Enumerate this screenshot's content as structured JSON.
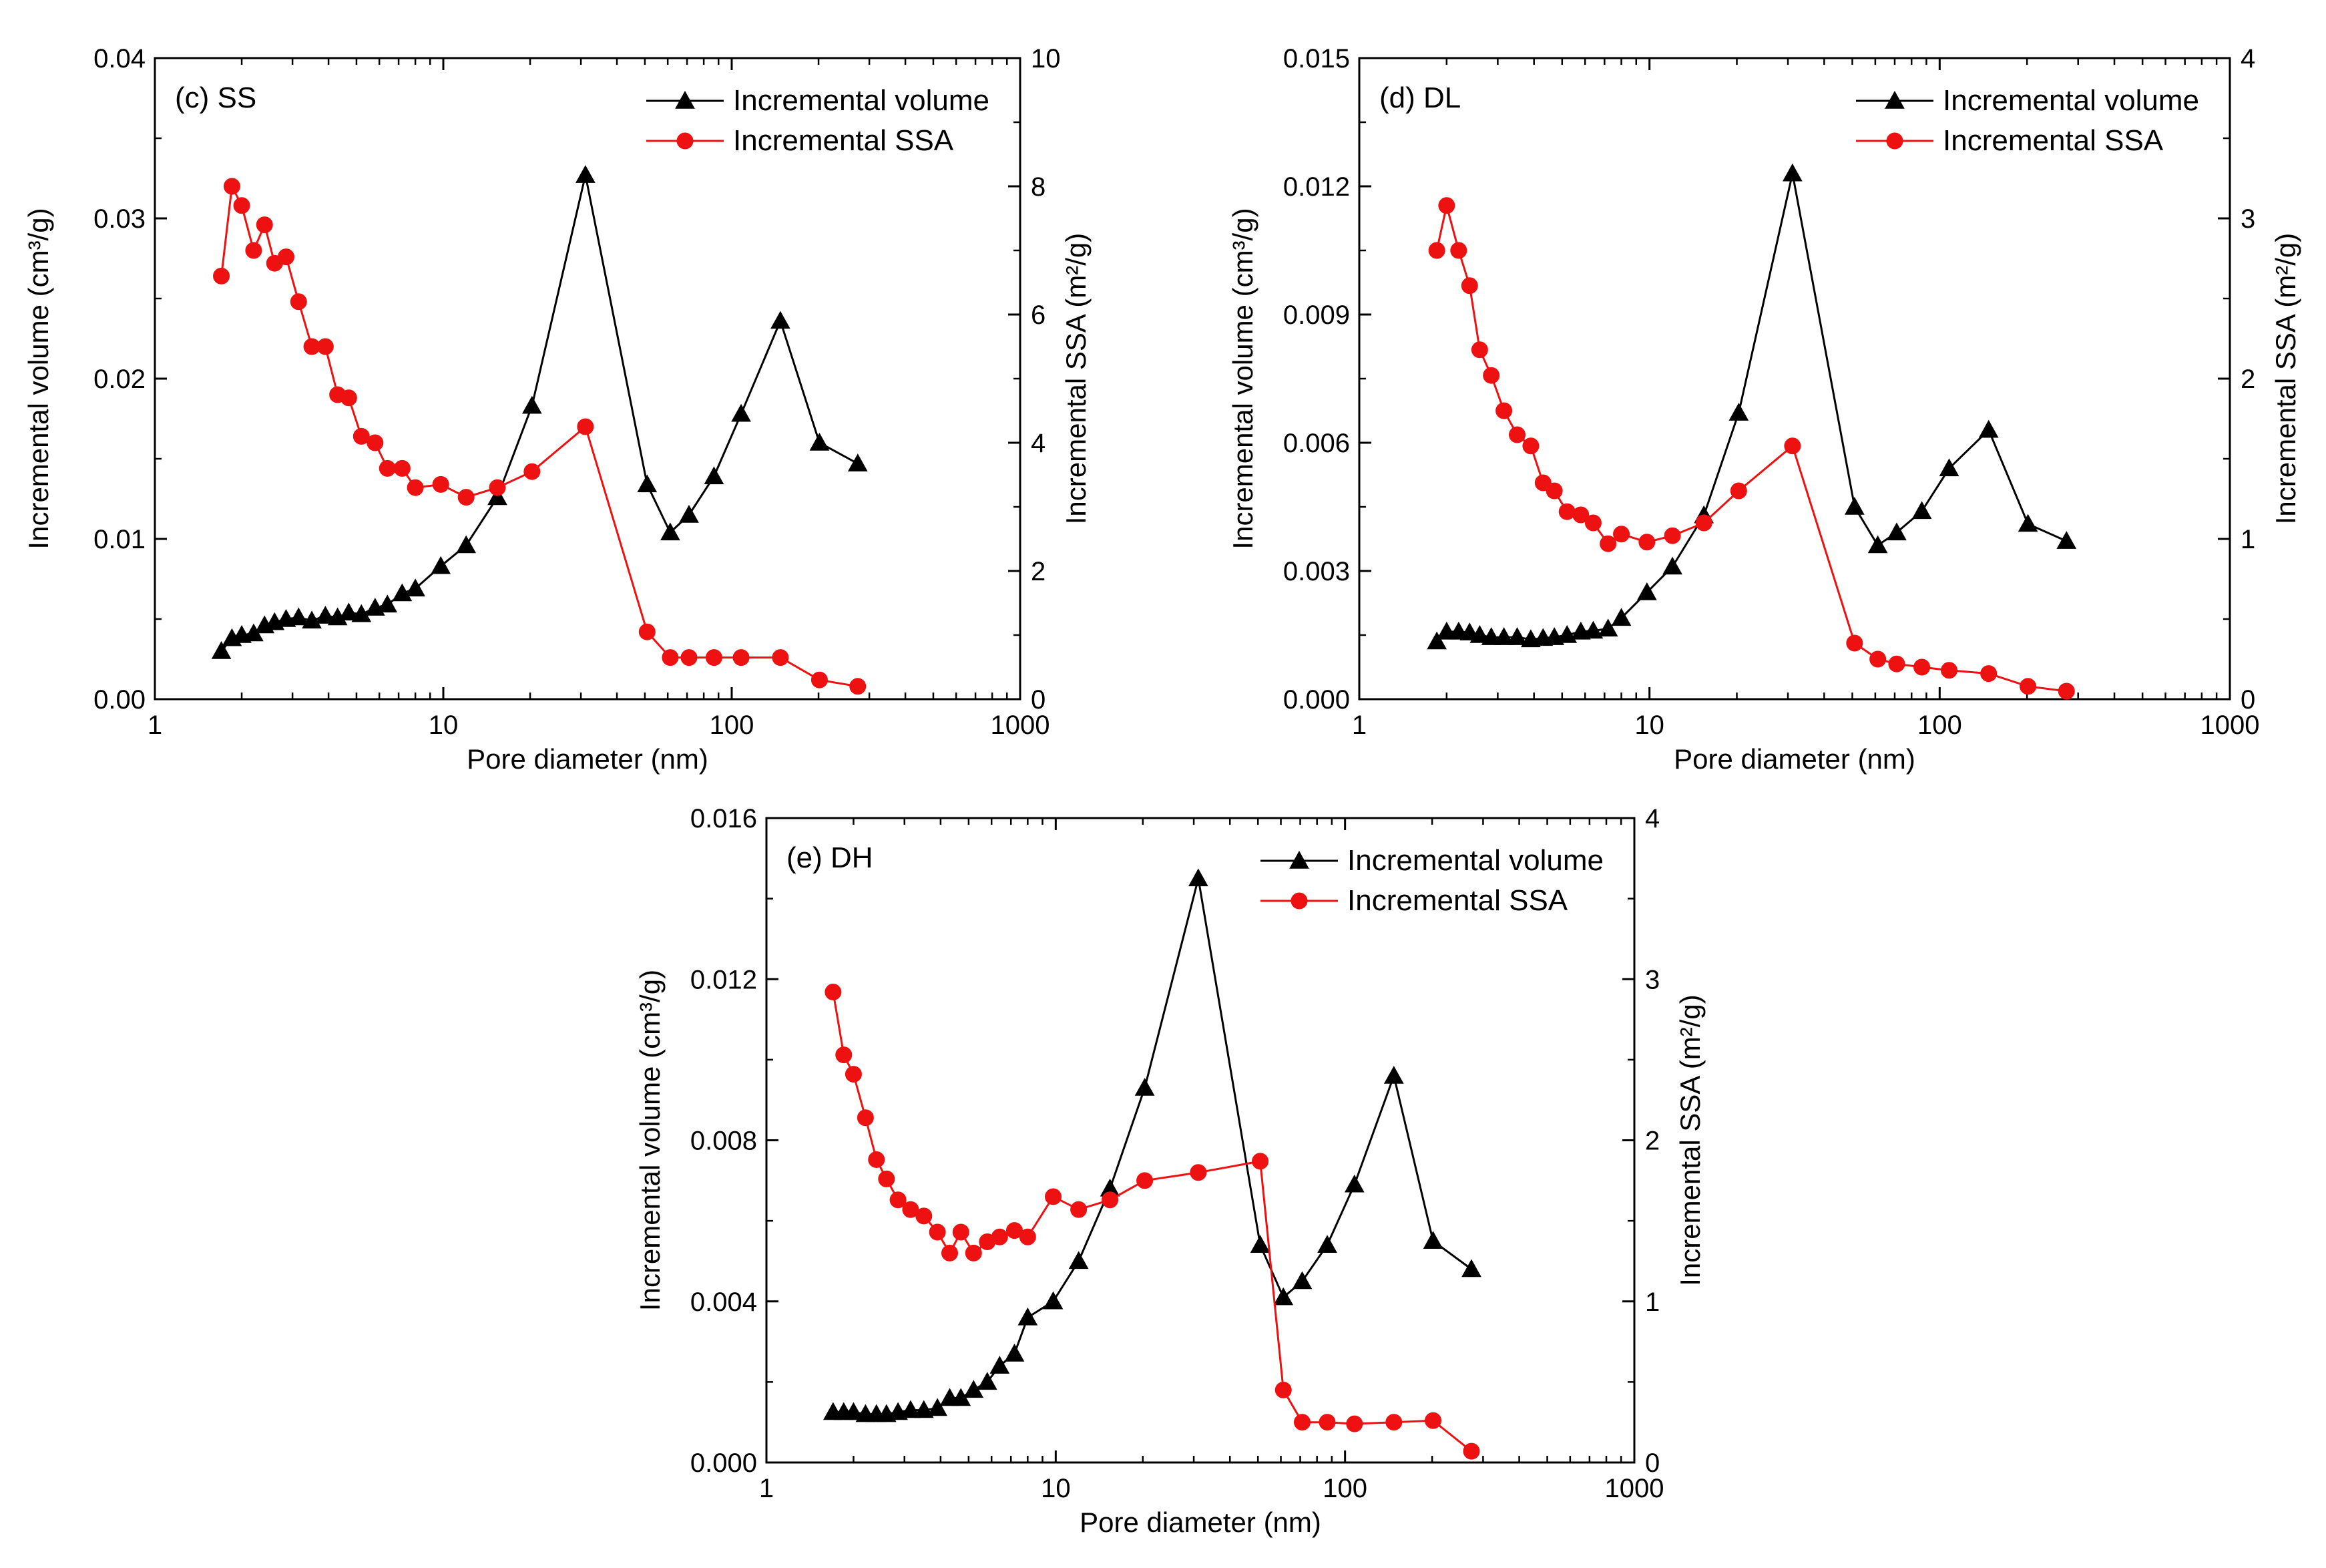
{
  "colors": {
    "volume": "#000000",
    "ssa": "#ee1111",
    "axis": "#000000"
  },
  "chart_data": [
    {
      "type": "line",
      "panel_label": "(c) SS",
      "xlabel": "Pore diameter (nm)",
      "ylabel_left": "Incremental volume (cm³/g)",
      "ylabel_right": "Incremental SSA (m²/g)",
      "x_scale": "log",
      "xlim": [
        1,
        1000
      ],
      "x_ticks": [
        1,
        10,
        100,
        1000
      ],
      "x_tick_labels": [
        "1",
        "10",
        "100",
        "1000"
      ],
      "ylim_left": [
        0,
        0.04
      ],
      "y_ticks_left": [
        0,
        0.01,
        0.02,
        0.03,
        0.04
      ],
      "y_tick_labels_left": [
        "0.00",
        "0.01",
        "0.02",
        "0.03",
        "0.04"
      ],
      "ylim_right": [
        0,
        10
      ],
      "y_ticks_right": [
        0,
        2,
        4,
        6,
        8,
        10
      ],
      "y_tick_labels_right": [
        "0",
        "2",
        "4",
        "6",
        "8",
        "10"
      ],
      "legend": [
        "Incremental volume",
        "Incremental SSA"
      ],
      "legend_position": "top-right",
      "series": [
        {
          "name": "Incremental volume",
          "axis": "left",
          "marker": "triangle",
          "x": [
            1.7,
            1.85,
            2.0,
            2.2,
            2.4,
            2.6,
            2.85,
            3.15,
            3.5,
            3.9,
            4.3,
            4.7,
            5.2,
            5.8,
            6.4,
            7.2,
            8.0,
            9.8,
            12.0,
            15.4,
            20.3,
            31.1,
            50.9,
            61.2,
            71.1,
            86.8,
            107.8,
            147.5,
            201.5,
            273.5
          ],
          "values": [
            0.003,
            0.0038,
            0.004,
            0.0041,
            0.0046,
            0.0048,
            0.005,
            0.0051,
            0.0049,
            0.0052,
            0.0051,
            0.0054,
            0.0053,
            0.0057,
            0.0059,
            0.0066,
            0.0069,
            0.0083,
            0.0096,
            0.0126,
            0.0183,
            0.0327,
            0.0134,
            0.0104,
            0.0115,
            0.0139,
            0.0178,
            0.0236,
            0.016,
            0.0147
          ]
        },
        {
          "name": "Incremental SSA",
          "axis": "right",
          "marker": "circle",
          "x": [
            1.7,
            1.85,
            2.0,
            2.2,
            2.4,
            2.6,
            2.85,
            3.15,
            3.5,
            3.9,
            4.3,
            4.7,
            5.2,
            5.8,
            6.4,
            7.2,
            8.0,
            9.8,
            12.0,
            15.4,
            20.3,
            31.1,
            50.9,
            61.2,
            71.1,
            86.8,
            107.8,
            147.5,
            201.5,
            273.5
          ],
          "values": [
            6.6,
            8.0,
            7.7,
            7.0,
            7.4,
            6.8,
            6.9,
            6.2,
            5.5,
            5.5,
            4.75,
            4.7,
            4.1,
            4.0,
            3.6,
            3.6,
            3.3,
            3.35,
            3.15,
            3.3,
            3.55,
            4.25,
            1.05,
            0.65,
            0.65,
            0.65,
            0.65,
            0.65,
            0.3,
            0.2
          ]
        }
      ]
    },
    {
      "type": "line",
      "panel_label": "(d) DL",
      "xlabel": "Pore diameter (nm)",
      "ylabel_left": "Incremental volume (cm³/g)",
      "ylabel_right": "Incremental SSA (m²/g)",
      "x_scale": "log",
      "xlim": [
        1,
        1000
      ],
      "x_ticks": [
        1,
        10,
        100,
        1000
      ],
      "x_tick_labels": [
        "1",
        "10",
        "100",
        "1000"
      ],
      "ylim_left": [
        0,
        0.015
      ],
      "y_ticks_left": [
        0,
        0.003,
        0.006,
        0.009,
        0.012,
        0.015
      ],
      "y_tick_labels_left": [
        "0.000",
        "0.003",
        "0.006",
        "0.009",
        "0.012",
        "0.015"
      ],
      "ylim_right": [
        0,
        4
      ],
      "y_ticks_right": [
        0,
        1,
        2,
        3,
        4
      ],
      "y_tick_labels_right": [
        "0",
        "1",
        "2",
        "3",
        "4"
      ],
      "legend": [
        "Incremental volume",
        "Incremental SSA"
      ],
      "legend_position": "top-right",
      "series": [
        {
          "name": "Incremental volume",
          "axis": "left",
          "marker": "triangle",
          "x": [
            1.85,
            2.0,
            2.2,
            2.4,
            2.6,
            2.85,
            3.15,
            3.5,
            3.9,
            4.3,
            4.7,
            5.2,
            5.8,
            6.4,
            7.2,
            8.0,
            9.8,
            12.0,
            15.4,
            20.3,
            31.1,
            50.9,
            61.2,
            71.1,
            86.8,
            107.8,
            147.5,
            201.5,
            273.5
          ],
          "values": [
            0.00135,
            0.00158,
            0.00158,
            0.00156,
            0.0015,
            0.00145,
            0.00145,
            0.00145,
            0.0014,
            0.00143,
            0.00145,
            0.0015,
            0.00158,
            0.0016,
            0.00165,
            0.0019,
            0.0025,
            0.0031,
            0.0043,
            0.0067,
            0.0123,
            0.0045,
            0.0036,
            0.0039,
            0.0044,
            0.0054,
            0.0063,
            0.0041,
            0.0037
          ]
        },
        {
          "name": "Incremental SSA",
          "axis": "right",
          "marker": "circle",
          "x": [
            1.85,
            2.0,
            2.2,
            2.4,
            2.6,
            2.85,
            3.15,
            3.5,
            3.9,
            4.3,
            4.7,
            5.2,
            5.8,
            6.4,
            7.2,
            8.0,
            9.8,
            12.0,
            15.4,
            20.3,
            31.1,
            50.9,
            61.2,
            71.1,
            86.8,
            107.8,
            147.5,
            201.5,
            273.5
          ],
          "values": [
            2.8,
            3.08,
            2.8,
            2.58,
            2.18,
            2.02,
            1.8,
            1.65,
            1.58,
            1.35,
            1.3,
            1.17,
            1.15,
            1.1,
            0.97,
            1.03,
            0.98,
            1.02,
            1.1,
            1.3,
            1.58,
            0.35,
            0.25,
            0.22,
            0.2,
            0.18,
            0.16,
            0.08,
            0.05
          ]
        }
      ]
    },
    {
      "type": "line",
      "panel_label": "(e) DH",
      "xlabel": "Pore diameter (nm)",
      "ylabel_left": "Incremental volume (cm³/g)",
      "ylabel_right": "Incremental SSA (m²/g)",
      "x_scale": "log",
      "xlim": [
        1,
        1000
      ],
      "x_ticks": [
        1,
        10,
        100,
        1000
      ],
      "x_tick_labels": [
        "1",
        "10",
        "100",
        "1000"
      ],
      "ylim_left": [
        0,
        0.016
      ],
      "y_ticks_left": [
        0,
        0.004,
        0.008,
        0.012,
        0.016
      ],
      "y_tick_labels_left": [
        "0.000",
        "0.004",
        "0.008",
        "0.012",
        "0.016"
      ],
      "ylim_right": [
        0,
        4
      ],
      "y_ticks_right": [
        0,
        1,
        2,
        3,
        4
      ],
      "y_tick_labels_right": [
        "0",
        "1",
        "2",
        "3",
        "4"
      ],
      "legend": [
        "Incremental volume",
        "Incremental SSA"
      ],
      "legend_position": "top-right",
      "series": [
        {
          "name": "Incremental volume",
          "axis": "left",
          "marker": "triangle",
          "x": [
            1.7,
            1.85,
            2.0,
            2.2,
            2.4,
            2.6,
            2.85,
            3.15,
            3.5,
            3.9,
            4.3,
            4.7,
            5.2,
            5.8,
            6.4,
            7.2,
            8.0,
            9.8,
            12.0,
            15.4,
            20.3,
            31.1,
            50.9,
            61.2,
            71.1,
            86.8,
            107.8,
            147.5,
            201.5,
            273.5
          ],
          "values": [
            0.00125,
            0.00125,
            0.00125,
            0.0012,
            0.0012,
            0.0012,
            0.00125,
            0.0013,
            0.0013,
            0.00135,
            0.0016,
            0.0016,
            0.0018,
            0.002,
            0.0024,
            0.0027,
            0.0036,
            0.004,
            0.005,
            0.0068,
            0.0093,
            0.0145,
            0.0054,
            0.0041,
            0.0045,
            0.0054,
            0.0069,
            0.0096,
            0.0055,
            0.0048
          ]
        },
        {
          "name": "Incremental SSA",
          "axis": "right",
          "marker": "circle",
          "x": [
            1.7,
            1.85,
            2.0,
            2.2,
            2.4,
            2.6,
            2.85,
            3.15,
            3.5,
            3.9,
            4.3,
            4.7,
            5.2,
            5.8,
            6.4,
            7.2,
            8.0,
            9.8,
            12.0,
            15.4,
            20.3,
            31.1,
            50.9,
            61.2,
            71.1,
            86.8,
            107.8,
            147.5,
            201.5,
            273.5
          ],
          "values": [
            2.92,
            2.53,
            2.41,
            2.14,
            1.88,
            1.76,
            1.63,
            1.57,
            1.53,
            1.43,
            1.3,
            1.43,
            1.3,
            1.37,
            1.4,
            1.44,
            1.4,
            1.65,
            1.57,
            1.63,
            1.75,
            1.8,
            1.87,
            0.45,
            0.25,
            0.25,
            0.24,
            0.25,
            0.26,
            0.07
          ]
        }
      ]
    }
  ]
}
